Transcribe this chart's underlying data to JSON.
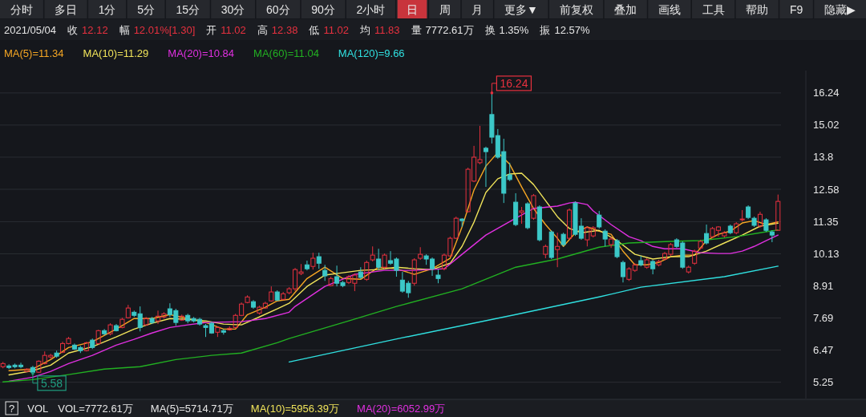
{
  "chart_data": {
    "type": "candlestick",
    "categories": [
      null,
      null,
      null,
      null,
      null,
      null,
      null,
      null,
      null,
      null,
      null,
      null,
      null,
      null,
      null,
      null,
      null,
      null,
      null,
      null,
      null,
      null,
      null,
      null,
      null,
      null,
      null,
      null,
      null,
      null,
      null,
      null,
      null,
      null,
      null,
      null,
      null,
      null,
      null,
      null,
      null,
      null,
      null,
      null,
      null,
      null,
      null,
      null,
      null,
      null,
      null,
      null,
      null,
      null,
      null,
      null,
      null,
      null,
      null,
      null,
      null,
      null,
      null,
      null,
      null,
      null,
      null,
      null,
      null,
      null,
      null,
      null,
      null,
      null,
      null,
      null,
      null,
      null,
      null,
      null,
      null,
      null,
      null,
      null,
      null,
      null,
      null,
      null,
      null,
      null,
      null,
      null,
      null,
      null,
      null,
      null,
      null,
      null,
      null,
      null,
      null,
      null,
      null,
      null,
      null,
      null,
      null,
      null,
      null,
      null,
      null,
      null,
      null,
      null,
      null,
      null,
      null,
      null,
      null,
      null,
      null,
      null,
      null,
      null,
      null,
      null,
      null,
      null,
      null,
      null,
      null
    ],
    "ohlc": [
      [
        5.84,
        6.02,
        5.78,
        5.96
      ],
      [
        5.87,
        5.93,
        5.75,
        5.81
      ],
      [
        5.9,
        5.96,
        5.78,
        5.84
      ],
      [
        5.9,
        5.99,
        5.78,
        5.84
      ],
      [
        5.66,
        5.78,
        5.63,
        5.75
      ],
      [
        5.81,
        5.87,
        5.58,
        5.63
      ],
      [
        5.63,
        6.08,
        5.6,
        6.05
      ],
      [
        5.96,
        6.42,
        5.93,
        6.27
      ],
      [
        6.21,
        6.33,
        6.14,
        6.27
      ],
      [
        6.36,
        6.45,
        6.18,
        6.24
      ],
      [
        6.39,
        6.79,
        6.36,
        6.72
      ],
      [
        6.72,
        6.97,
        6.69,
        6.91
      ],
      [
        6.66,
        6.72,
        6.48,
        6.51
      ],
      [
        6.57,
        6.63,
        6.36,
        6.45
      ],
      [
        6.45,
        6.79,
        6.42,
        6.75
      ],
      [
        6.85,
        6.91,
        6.51,
        6.57
      ],
      [
        6.72,
        7.24,
        6.69,
        7.21
      ],
      [
        7.21,
        7.27,
        7.03,
        7.09
      ],
      [
        7.09,
        7.49,
        7.03,
        7.43
      ],
      [
        7.4,
        7.46,
        7.18,
        7.21
      ],
      [
        7.33,
        7.7,
        7.3,
        7.64
      ],
      [
        7.7,
        8.19,
        7.67,
        8.07
      ],
      [
        7.91,
        7.97,
        7.73,
        7.79
      ],
      [
        7.85,
        8.13,
        7.18,
        7.33
      ],
      [
        7.43,
        7.73,
        7.4,
        7.67
      ],
      [
        7.67,
        7.73,
        7.46,
        7.52
      ],
      [
        7.58,
        7.97,
        7.46,
        7.76
      ],
      [
        7.73,
        7.91,
        7.67,
        7.85
      ],
      [
        8.04,
        8.25,
        7.73,
        7.82
      ],
      [
        7.97,
        8.04,
        7.4,
        7.52
      ],
      [
        7.61,
        7.82,
        7.58,
        7.76
      ],
      [
        7.79,
        7.85,
        7.49,
        7.58
      ],
      [
        7.67,
        7.73,
        7.52,
        7.58
      ],
      [
        7.64,
        7.7,
        7.4,
        7.46
      ],
      [
        7.4,
        7.46,
        6.97,
        7.33
      ],
      [
        7.49,
        7.55,
        7.09,
        7.12
      ],
      [
        7.15,
        7.37,
        6.97,
        7.33
      ],
      [
        7.21,
        7.27,
        7.06,
        7.15
      ],
      [
        7.24,
        7.37,
        7.21,
        7.3
      ],
      [
        7.33,
        7.85,
        7.3,
        7.79
      ],
      [
        7.79,
        8.28,
        7.76,
        8.22
      ],
      [
        8.28,
        8.55,
        8.25,
        8.49
      ],
      [
        8.31,
        8.37,
        8.04,
        8.1
      ],
      [
        7.88,
        8.16,
        7.82,
        8.1
      ],
      [
        8.07,
        8.31,
        8.04,
        8.25
      ],
      [
        8.34,
        8.89,
        8.31,
        8.68
      ],
      [
        8.68,
        8.74,
        8.34,
        8.37
      ],
      [
        8.4,
        8.68,
        8.37,
        8.61
      ],
      [
        8.65,
        8.86,
        8.59,
        8.8
      ],
      [
        8.8,
        9.59,
        8.71,
        9.53
      ],
      [
        9.38,
        9.74,
        9.32,
        9.44
      ],
      [
        9.71,
        9.87,
        9.5,
        9.56
      ],
      [
        9.65,
        10.17,
        9.53,
        9.96
      ],
      [
        10.02,
        10.17,
        9.56,
        9.77
      ],
      [
        9.5,
        9.71,
        9.1,
        9.29
      ],
      [
        8.92,
        9.26,
        8.89,
        9.19
      ],
      [
        9.26,
        9.68,
        8.89,
        9.01
      ],
      [
        9.04,
        9.1,
        8.86,
        8.92
      ],
      [
        9.04,
        9.32,
        8.98,
        9.26
      ],
      [
        9.01,
        9.38,
        8.71,
        9.32
      ],
      [
        9.44,
        9.62,
        9.16,
        9.23
      ],
      [
        9.16,
        9.87,
        9.1,
        9.8
      ],
      [
        9.9,
        10.41,
        9.84,
        10.08
      ],
      [
        9.93,
        10.32,
        9.53,
        9.62
      ],
      [
        9.62,
        10.14,
        9.56,
        10.08
      ],
      [
        9.87,
        10.23,
        9.71,
        9.77
      ],
      [
        9.93,
        9.99,
        9.26,
        9.5
      ],
      [
        9.13,
        9.44,
        8.65,
        8.71
      ],
      [
        9.01,
        9.1,
        8.46,
        8.65
      ],
      [
        9.01,
        9.96,
        8.92,
        9.9
      ],
      [
        9.96,
        10.38,
        9.9,
        10.11
      ],
      [
        10.05,
        10.11,
        9.71,
        9.93
      ],
      [
        9.93,
        9.99,
        9.29,
        9.56
      ],
      [
        9.32,
        9.53,
        9.01,
        9.19
      ],
      [
        9.56,
        10.14,
        9.5,
        10.08
      ],
      [
        10.05,
        10.78,
        10.02,
        10.72
      ],
      [
        10.72,
        11.54,
        10.69,
        11.48
      ],
      [
        11.45,
        11.48,
        11.15,
        11.39
      ],
      [
        11.73,
        13.4,
        11.7,
        13.34
      ],
      [
        12.89,
        14.23,
        12.85,
        13.8
      ],
      [
        13.59,
        14.99,
        13.53,
        13.71
      ],
      [
        14.14,
        14.2,
        12.67,
        14.01
      ],
      [
        15.42,
        16.24,
        14.32,
        14.56
      ],
      [
        14.62,
        14.87,
        13.74,
        13.8
      ],
      [
        14.01,
        14.5,
        12.06,
        12.43
      ],
      [
        13.13,
        13.59,
        12.89,
        12.95
      ],
      [
        12.09,
        12.43,
        11.18,
        11.24
      ],
      [
        11.7,
        11.91,
        11.27,
        11.76
      ],
      [
        12.03,
        12.09,
        11.06,
        11.12
      ],
      [
        11.48,
        12.4,
        11.42,
        12.34
      ],
      [
        11.91,
        11.97,
        10.6,
        10.66
      ],
      [
        10.11,
        10.48,
        9.96,
        10.41
      ],
      [
        10.96,
        11.02,
        9.93,
        9.99
      ],
      [
        10.29,
        10.93,
        9.62,
        10.41
      ],
      [
        10.87,
        10.93,
        10.41,
        10.48
      ],
      [
        10.72,
        11.85,
        10.66,
        11.79
      ],
      [
        12.06,
        12.12,
        10.81,
        10.87
      ],
      [
        11.18,
        11.48,
        10.66,
        10.72
      ],
      [
        10.66,
        11.18,
        10.41,
        11.12
      ],
      [
        10.81,
        11.18,
        10.75,
        11.12
      ],
      [
        11.6,
        11.76,
        11.09,
        11.15
      ],
      [
        10.99,
        11.06,
        10.41,
        10.69
      ],
      [
        10.48,
        10.78,
        10.35,
        10.69
      ],
      [
        10.63,
        10.69,
        9.96,
        10.02
      ],
      [
        9.8,
        9.87,
        9.04,
        9.26
      ],
      [
        9.16,
        9.62,
        9.1,
        9.56
      ],
      [
        9.5,
        9.77,
        9.44,
        9.71
      ],
      [
        9.87,
        10.05,
        9.65,
        9.71
      ],
      [
        9.62,
        9.96,
        9.56,
        9.9
      ],
      [
        9.84,
        9.9,
        9.35,
        9.56
      ],
      [
        9.71,
        9.9,
        9.65,
        9.84
      ],
      [
        9.93,
        10.2,
        9.87,
        10.14
      ],
      [
        10.11,
        10.54,
        10.05,
        10.48
      ],
      [
        10.66,
        10.72,
        10.35,
        10.41
      ],
      [
        10.54,
        10.6,
        9.56,
        9.62
      ],
      [
        9.44,
        9.68,
        9.38,
        9.62
      ],
      [
        9.77,
        10.29,
        9.71,
        10.23
      ],
      [
        10.35,
        10.66,
        10.29,
        10.6
      ],
      [
        10.9,
        11.24,
        10.48,
        10.54
      ],
      [
        10.78,
        11.15,
        10.72,
        11.09
      ],
      [
        11.02,
        11.18,
        10.78,
        11.15
      ],
      [
        10.81,
        10.99,
        10.75,
        10.93
      ],
      [
        11.18,
        11.24,
        10.87,
        10.93
      ],
      [
        10.93,
        11.33,
        10.87,
        11.27
      ],
      [
        11.42,
        11.79,
        11.36,
        11.45
      ],
      [
        11.91,
        11.97,
        11.45,
        11.51
      ],
      [
        11.48,
        11.54,
        11.15,
        11.21
      ],
      [
        11.18,
        11.73,
        11.12,
        11.63
      ],
      [
        11.42,
        11.48,
        10.96,
        11.02
      ],
      [
        10.96,
        11.02,
        10.57,
        10.84
      ],
      [
        11.02,
        12.38,
        11.02,
        12.12
      ]
    ],
    "series": [
      {
        "name": "MA(5)=11.34",
        "type": "line",
        "color": "#f5a623",
        "values": [
          null,
          5.69,
          null,
          null,
          null,
          5.75,
          null,
          null,
          6.11,
          null,
          null,
          6.57,
          null,
          null,
          null,
          6.79,
          null,
          null,
          null,
          7.27,
          null,
          null,
          7.67,
          null,
          null,
          7.67,
          null,
          null,
          7.82,
          null,
          null,
          7.67,
          null,
          null,
          7.52,
          null,
          null,
          7.27,
          null,
          7.27,
          null,
          7.82,
          null,
          null,
          8.1,
          null,
          8.34,
          null,
          8.4,
          null,
          null,
          9.19,
          null,
          null,
          9.62,
          null,
          null,
          9.19,
          null,
          null,
          9.16,
          null,
          null,
          9.62,
          null,
          null,
          9.56,
          null,
          null,
          9.35,
          null,
          null,
          9.56,
          null,
          null,
          9.96,
          null,
          11.15,
          null,
          12.55,
          null,
          13.46,
          null,
          13.98,
          null,
          13.53,
          null,
          12.67,
          null,
          11.85,
          null,
          11.24,
          null,
          10.72,
          10.41,
          null,
          10.93,
          null,
          11.15,
          null,
          10.99,
          null,
          10.87,
          null,
          10.23,
          null,
          9.71,
          null,
          9.71,
          null,
          9.8,
          null,
          10.02,
          null,
          10.08,
          null,
          10.08,
          null,
          10.63,
          null,
          10.87,
          null,
          10.99,
          null,
          11.3,
          null,
          11.39,
          null,
          11.24,
          null,
          11.34
        ]
      },
      {
        "name": "MA(10)=11.29",
        "type": "line",
        "color": "#f0e35a",
        "values": [
          null,
          5.53,
          null,
          null,
          null,
          5.69,
          null,
          null,
          5.9,
          null,
          null,
          6.36,
          null,
          null,
          null,
          6.6,
          null,
          null,
          null,
          6.97,
          null,
          null,
          7.27,
          null,
          null,
          7.49,
          null,
          null,
          7.67,
          null,
          null,
          7.64,
          null,
          null,
          7.58,
          null,
          null,
          7.46,
          null,
          null,
          7.43,
          null,
          null,
          7.73,
          null,
          null,
          8.04,
          null,
          8.25,
          null,
          null,
          8.89,
          null,
          null,
          9.32,
          null,
          null,
          9.41,
          null,
          null,
          9.5,
          null,
          null,
          9.53,
          null,
          null,
          9.62,
          null,
          null,
          9.56,
          null,
          null,
          9.53,
          null,
          null,
          9.77,
          null,
          10.41,
          null,
          11.33,
          null,
          12.46,
          null,
          12.98,
          null,
          13.16,
          null,
          13.19,
          null,
          12.76,
          null,
          12.15,
          null,
          11.54,
          null,
          11.09,
          null,
          10.93,
          null,
          null,
          11.02,
          null,
          null,
          10.63,
          null,
          null,
          10.11,
          null,
          null,
          9.93,
          null,
          null,
          10.02,
          null,
          null,
          10.02,
          null,
          null,
          10.23,
          null,
          null,
          10.54,
          null,
          null,
          10.84,
          null,
          null,
          11.18,
          null,
          null,
          11.29
        ]
      },
      {
        "name": "MA(20)=10.84",
        "type": "line",
        "color": "#e030e0",
        "values": [
          null,
          5.29,
          null,
          null,
          null,
          5.44,
          null,
          null,
          5.66,
          null,
          null,
          5.96,
          null,
          null,
          null,
          6.27,
          null,
          null,
          null,
          6.66,
          null,
          null,
          6.88,
          null,
          null,
          7.12,
          null,
          null,
          7.33,
          null,
          null,
          7.43,
          null,
          null,
          7.52,
          null,
          null,
          null,
          null,
          null,
          7.55,
          null,
          null,
          null,
          7.67,
          null,
          null,
          null,
          7.91,
          8.13,
          null,
          null,
          null,
          null,
          8.89,
          null,
          null,
          null,
          null,
          9.35,
          null,
          null,
          null,
          null,
          9.5,
          null,
          null,
          null,
          null,
          9.5,
          null,
          null,
          null,
          null,
          9.56,
          null,
          null,
          10.11,
          null,
          null,
          null,
          10.84,
          null,
          null,
          null,
          null,
          11.48,
          null,
          null,
          11.85,
          null,
          null,
          null,
          11.94,
          null,
          12.06,
          12.09,
          null,
          12.0,
          11.76,
          null,
          null,
          11.24,
          null,
          null,
          10.78,
          null,
          10.63,
          null,
          10.41,
          null,
          10.32,
          null,
          null,
          10.32,
          null,
          null,
          10.17,
          null,
          null,
          10.14,
          null,
          10.14,
          null,
          10.23,
          null,
          10.41,
          null,
          10.63,
          null,
          10.84
        ]
      },
      {
        "name": "MA(60)=11.04",
        "type": "line",
        "color": "#22b022",
        "values": [
          5.26,
          null,
          null,
          null,
          null,
          5.35,
          null,
          null,
          null,
          null,
          null,
          5.54,
          null,
          null,
          null,
          null,
          null,
          5.75,
          null,
          null,
          null,
          null,
          null,
          5.84,
          null,
          null,
          null,
          null,
          null,
          6.11,
          null,
          null,
          null,
          null,
          null,
          6.27,
          null,
          null,
          null,
          null,
          6.36,
          null,
          null,
          null,
          null,
          null,
          6.75,
          null,
          6.91,
          null,
          null,
          null,
          null,
          null,
          null,
          null,
          null,
          null,
          7.58,
          null,
          null,
          null,
          null,
          null,
          null,
          null,
          8.13,
          null,
          null,
          null,
          null,
          null,
          null,
          null,
          null,
          null,
          null,
          8.8,
          null,
          null,
          null,
          null,
          null,
          null,
          null,
          null,
          9.62,
          null,
          null,
          null,
          null,
          null,
          null,
          9.93,
          null,
          null,
          null,
          null,
          null,
          null,
          10.38,
          null,
          null,
          null,
          null,
          10.54,
          null,
          null,
          null,
          null,
          null,
          null,
          10.6,
          null,
          null,
          null,
          null,
          10.63,
          null,
          null,
          null,
          null,
          null,
          10.78,
          null,
          null,
          null,
          10.93,
          null,
          null,
          11.04
        ]
      },
      {
        "name": "MA(120)=9.66",
        "type": "line",
        "color": "#30e0e0",
        "values": [
          null,
          null,
          null,
          null,
          null,
          null,
          null,
          null,
          null,
          null,
          null,
          null,
          null,
          null,
          null,
          null,
          null,
          null,
          null,
          null,
          null,
          null,
          null,
          null,
          null,
          null,
          null,
          null,
          null,
          null,
          null,
          null,
          null,
          null,
          null,
          null,
          null,
          null,
          null,
          null,
          null,
          null,
          null,
          null,
          null,
          null,
          null,
          null,
          6.02,
          null,
          null,
          null,
          null,
          null,
          null,
          null,
          null,
          null,
          null,
          null,
          null,
          null,
          null,
          null,
          null,
          null,
          null,
          6.94,
          null,
          null,
          null,
          null,
          null,
          null,
          null,
          null,
          null,
          null,
          null,
          null,
          null,
          null,
          null,
          null,
          null,
          null,
          7.82,
          null,
          null,
          null,
          null,
          null,
          null,
          null,
          null,
          null,
          null,
          null,
          null,
          null,
          8.49,
          null,
          null,
          null,
          null,
          null,
          null,
          8.86,
          null,
          null,
          null,
          null,
          null,
          null,
          null,
          null,
          null,
          null,
          null,
          null,
          null,
          9.26,
          null,
          null,
          null,
          null,
          null,
          null,
          null,
          null,
          9.66
        ]
      }
    ],
    "ylim": [
      4.63,
      17.09
    ],
    "yticks": [
      16.24,
      15.02,
      13.8,
      12.58,
      11.35,
      10.13,
      8.91,
      7.69,
      6.47,
      5.25
    ],
    "grid": "y",
    "legend": "top left",
    "tick_labels": "y",
    "annotations": [
      "分时",
      "多日",
      "1分",
      "5分",
      "15分",
      "30分",
      "60分",
      "90分",
      "2小时",
      "日",
      "周",
      "月",
      "更多▼",
      "前复权",
      "叠加",
      "画线",
      "工具",
      "帮助",
      "F9",
      "隐藏▶",
      "2021/05/04",
      "收 12.12",
      "幅 12.01%[1.30]",
      "开 11.02",
      "高 12.38",
      "低 11.02",
      "均 11.83",
      "量 7772.61万",
      "换 1.35%",
      "振 12.57%",
      "?",
      "VOL",
      "VOL=7772.61万",
      "MA(5)=5714.71万",
      "MA(10)=5956.39万",
      "MA(20)=6052.99万",
      "16.24",
      "5.58"
    ]
  }
}
